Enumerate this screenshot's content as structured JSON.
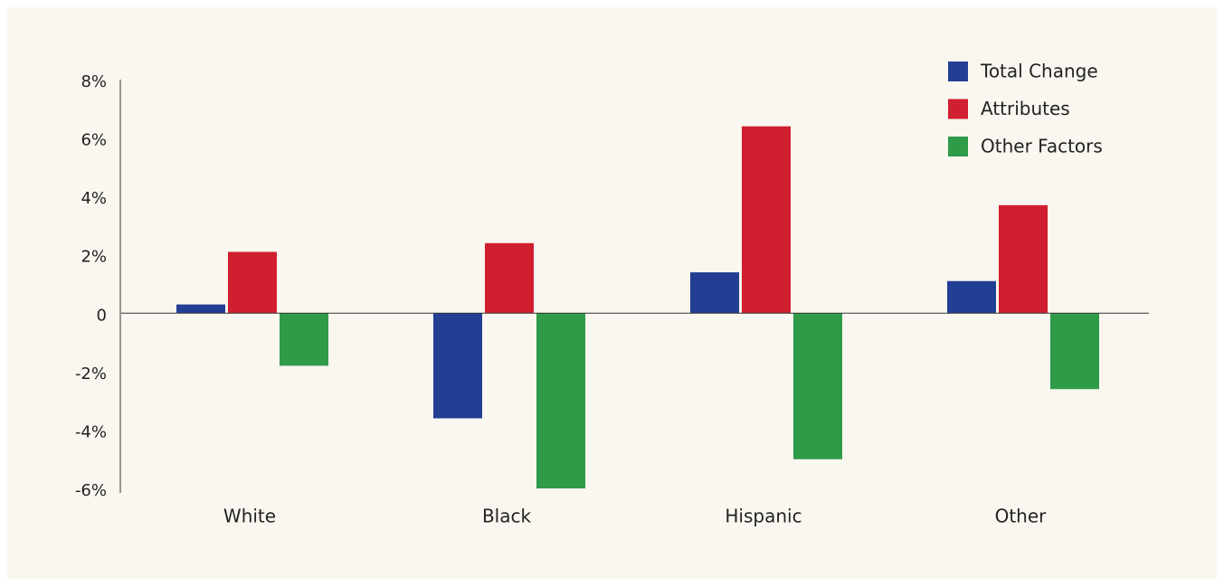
{
  "chart_data": {
    "type": "bar",
    "categories": [
      "White",
      "Black",
      "Hispanic",
      "Other"
    ],
    "series": [
      {
        "name": "Total Change",
        "color": "#233f94",
        "values": [
          0.3,
          -3.6,
          1.4,
          1.1
        ]
      },
      {
        "name": "Attributes",
        "color": "#d01f2e",
        "values": [
          2.1,
          2.4,
          6.4,
          3.7
        ]
      },
      {
        "name": "Other Factors",
        "color": "#2e9b48",
        "values": [
          -1.8,
          -6.0,
          -5.0,
          -2.6
        ]
      }
    ],
    "ylim": [
      -6,
      8
    ],
    "yticks": [
      {
        "value": -6,
        "label": "-6%"
      },
      {
        "value": -4,
        "label": "-4%"
      },
      {
        "value": -2,
        "label": "-2%"
      },
      0,
      {
        "value": 2,
        "label": "2%"
      },
      {
        "value": 4,
        "label": "4%"
      },
      {
        "value": 6,
        "label": "6%"
      },
      {
        "value": 8,
        "label": "8%"
      }
    ],
    "grid": false,
    "legend": "top-right"
  }
}
